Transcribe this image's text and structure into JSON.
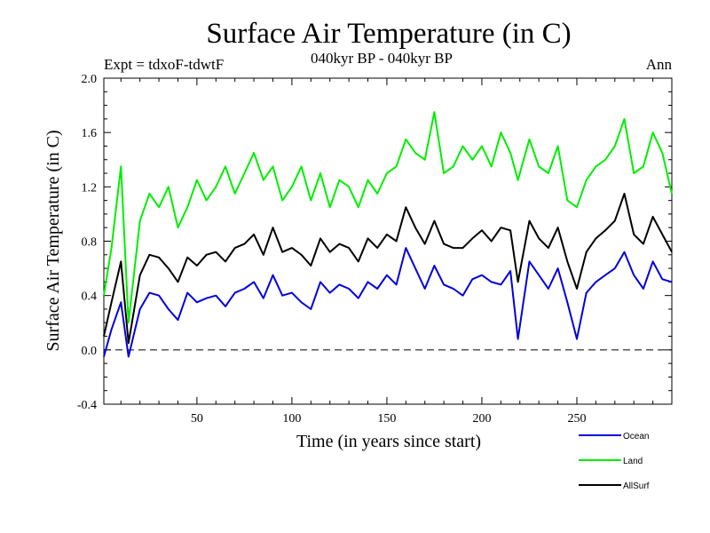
{
  "chart_data": {
    "type": "line",
    "title": "Surface Air Temperature (in C)",
    "subtitle": "040kyr BP - 040kyr BP",
    "left_header": "Expt = tdxoF-tdwtF",
    "right_header": "Ann",
    "xlabel": "Time (in years since start)",
    "ylabel": "Surface Air Temperature (in C)",
    "xlim": [
      1,
      300
    ],
    "ylim": [
      -0.4,
      2.0
    ],
    "x_ticks": [
      50,
      100,
      150,
      200,
      250
    ],
    "x_tick_labels": [
      "50",
      "100",
      "150",
      "200",
      "250"
    ],
    "y_ticks": [
      -0.4,
      0.0,
      0.4,
      0.8,
      1.2,
      1.6,
      2.0
    ],
    "y_tick_labels": [
      "-0.4",
      "0.0",
      "0.4",
      "0.8",
      "1.2",
      "1.6",
      "2.0"
    ],
    "zero_line": 0.0,
    "legend_position": "bottom-right, below plot",
    "series": [
      {
        "name": "Ocean",
        "color": "#0000dd",
        "x": [
          1,
          5,
          10,
          14,
          20,
          25,
          30,
          35,
          40,
          45,
          50,
          55,
          60,
          65,
          70,
          75,
          80,
          85,
          90,
          95,
          100,
          105,
          110,
          115,
          120,
          125,
          130,
          135,
          140,
          145,
          150,
          155,
          160,
          165,
          170,
          175,
          180,
          185,
          190,
          195,
          200,
          205,
          210,
          215,
          219,
          225,
          230,
          235,
          240,
          245,
          250,
          255,
          260,
          265,
          270,
          275,
          280,
          285,
          290,
          295,
          300
        ],
        "values": [
          -0.05,
          0.15,
          0.35,
          -0.05,
          0.3,
          0.42,
          0.4,
          0.3,
          0.22,
          0.42,
          0.35,
          0.38,
          0.4,
          0.32,
          0.42,
          0.45,
          0.5,
          0.38,
          0.55,
          0.4,
          0.42,
          0.35,
          0.3,
          0.5,
          0.42,
          0.48,
          0.45,
          0.38,
          0.5,
          0.45,
          0.55,
          0.48,
          0.75,
          0.6,
          0.45,
          0.62,
          0.48,
          0.45,
          0.4,
          0.52,
          0.55,
          0.5,
          0.48,
          0.58,
          0.08,
          0.65,
          0.55,
          0.45,
          0.6,
          0.35,
          0.08,
          0.42,
          0.5,
          0.55,
          0.6,
          0.72,
          0.55,
          0.45,
          0.65,
          0.52,
          0.5
        ]
      },
      {
        "name": "Land",
        "color": "#00ee00",
        "x": [
          1,
          5,
          10,
          14,
          20,
          25,
          30,
          35,
          40,
          45,
          50,
          55,
          60,
          65,
          70,
          75,
          80,
          85,
          90,
          95,
          100,
          105,
          110,
          115,
          120,
          125,
          130,
          135,
          140,
          145,
          150,
          155,
          160,
          165,
          170,
          175,
          180,
          185,
          190,
          195,
          200,
          205,
          210,
          215,
          219,
          225,
          230,
          235,
          240,
          245,
          250,
          255,
          260,
          265,
          270,
          275,
          280,
          285,
          290,
          295,
          300
        ],
        "values": [
          0.4,
          0.75,
          1.35,
          0.2,
          0.95,
          1.15,
          1.05,
          1.2,
          0.9,
          1.05,
          1.25,
          1.1,
          1.2,
          1.35,
          1.15,
          1.3,
          1.45,
          1.25,
          1.35,
          1.1,
          1.2,
          1.35,
          1.1,
          1.3,
          1.05,
          1.25,
          1.2,
          1.05,
          1.25,
          1.15,
          1.3,
          1.35,
          1.55,
          1.45,
          1.4,
          1.75,
          1.3,
          1.35,
          1.5,
          1.4,
          1.5,
          1.35,
          1.6,
          1.45,
          1.25,
          1.55,
          1.35,
          1.3,
          1.5,
          1.1,
          1.05,
          1.25,
          1.35,
          1.4,
          1.5,
          1.7,
          1.3,
          1.35,
          1.6,
          1.45,
          1.15
        ]
      },
      {
        "name": "AllSurf",
        "color": "#000000",
        "x": [
          1,
          5,
          10,
          14,
          20,
          25,
          30,
          35,
          40,
          45,
          50,
          55,
          60,
          65,
          70,
          75,
          80,
          85,
          90,
          95,
          100,
          105,
          110,
          115,
          120,
          125,
          130,
          135,
          140,
          145,
          150,
          155,
          160,
          165,
          170,
          175,
          180,
          185,
          190,
          195,
          200,
          205,
          210,
          215,
          219,
          225,
          230,
          235,
          240,
          245,
          250,
          255,
          260,
          265,
          270,
          275,
          280,
          285,
          290,
          295,
          300
        ],
        "values": [
          0.1,
          0.35,
          0.65,
          0.05,
          0.55,
          0.7,
          0.68,
          0.6,
          0.5,
          0.68,
          0.62,
          0.7,
          0.72,
          0.65,
          0.75,
          0.78,
          0.85,
          0.7,
          0.9,
          0.72,
          0.75,
          0.7,
          0.62,
          0.82,
          0.72,
          0.78,
          0.75,
          0.65,
          0.82,
          0.75,
          0.85,
          0.8,
          1.05,
          0.9,
          0.78,
          0.95,
          0.78,
          0.75,
          0.75,
          0.82,
          0.88,
          0.8,
          0.9,
          0.88,
          0.5,
          0.95,
          0.82,
          0.75,
          0.9,
          0.65,
          0.45,
          0.72,
          0.82,
          0.88,
          0.95,
          1.15,
          0.85,
          0.78,
          0.98,
          0.85,
          0.72
        ]
      }
    ]
  }
}
